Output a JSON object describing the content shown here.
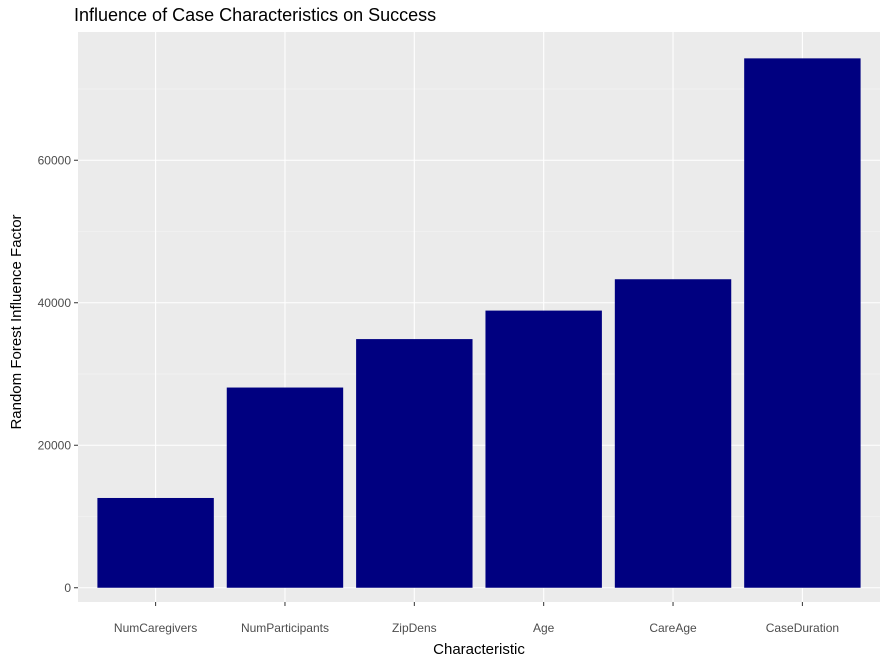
{
  "colors": {
    "panel_background": "#ebebeb",
    "grid_major": "#ffffff",
    "grid_minor": "#f5f5f5",
    "bar_fill": "#000080",
    "tick_text": "#4d4d4d",
    "title_text": "#000000"
  },
  "chart_data": {
    "type": "bar",
    "title": "Influence of Case Characteristics on Success",
    "xlabel": "Characteristic",
    "ylabel": "Random Forest Influence Factor",
    "categories": [
      "NumCaregivers",
      "NumParticipants",
      "ZipDens",
      "Age",
      "CareAge",
      "CaseDuration"
    ],
    "values": [
      12600,
      28100,
      34900,
      38900,
      43300,
      74300
    ],
    "ylim": [
      -2000,
      78000
    ],
    "yticks": [
      0,
      20000,
      40000,
      60000
    ],
    "ytick_labels": [
      "0",
      "20000",
      "40000",
      "60000"
    ],
    "grid": true,
    "legend": "none"
  }
}
